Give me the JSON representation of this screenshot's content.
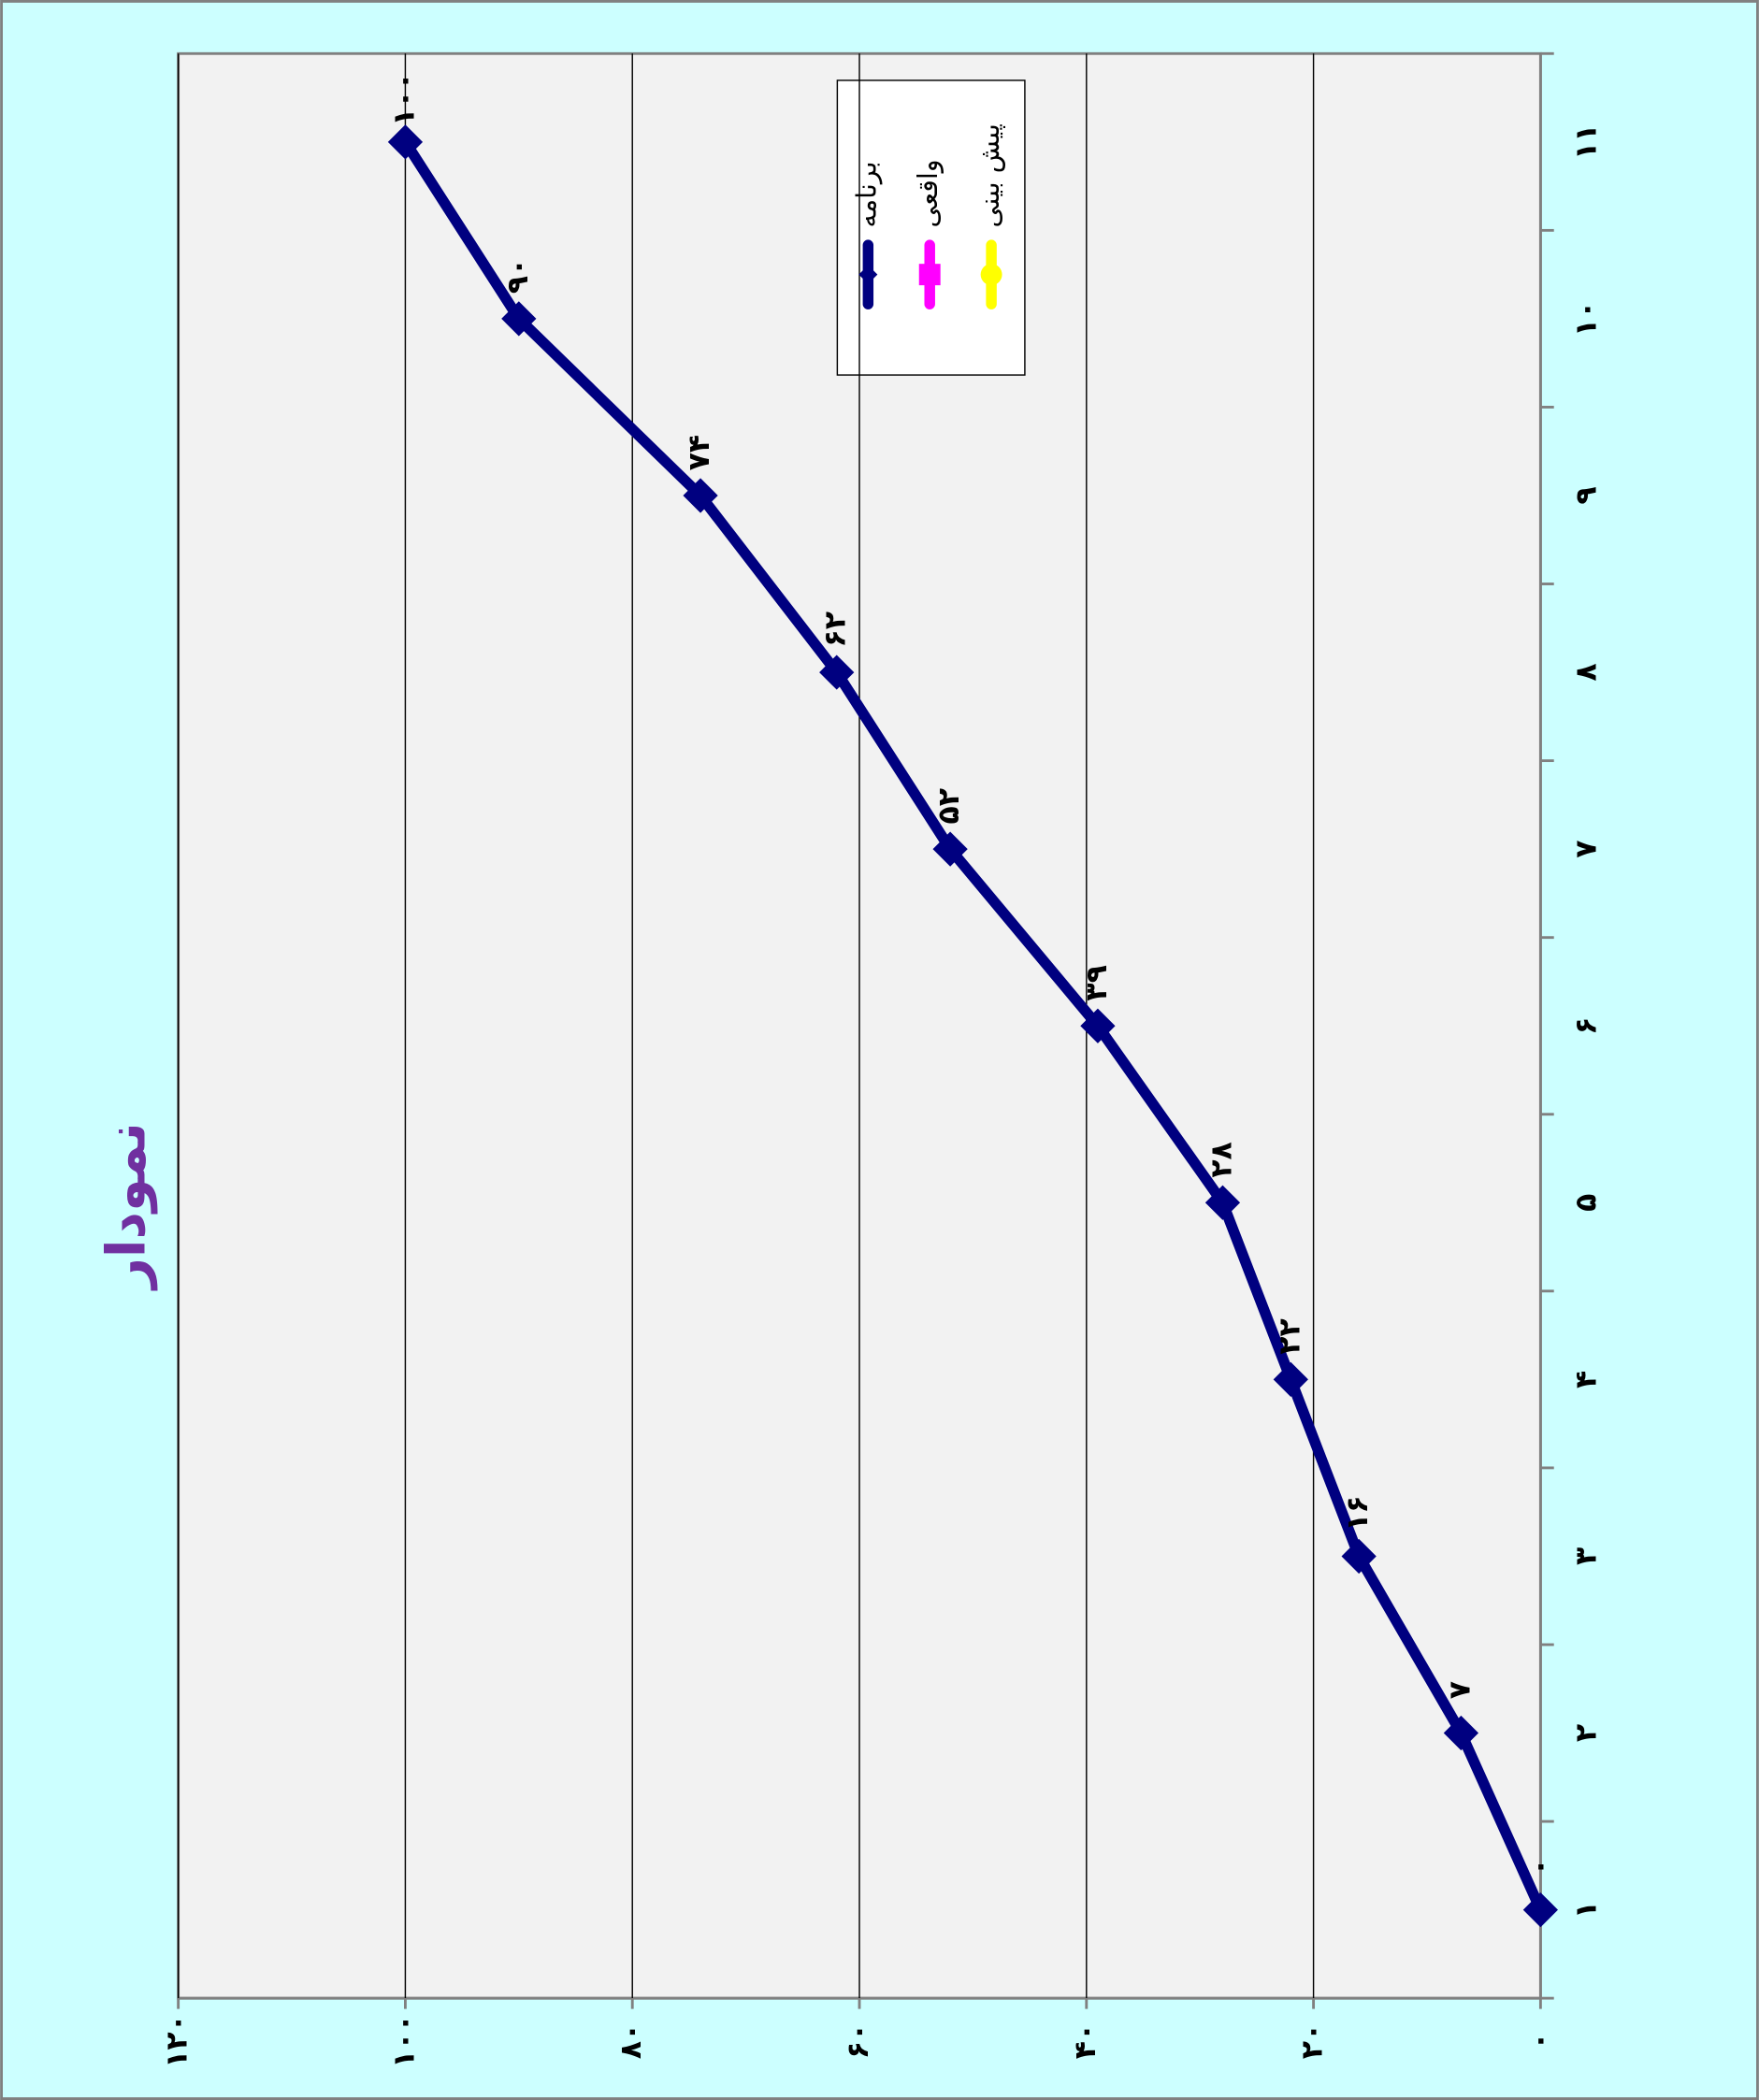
{
  "chart_data": {
    "type": "line",
    "title": "نمودار",
    "categories": [
      "۱",
      "۲",
      "۳",
      "۴",
      "۵",
      "۶",
      "۷",
      "۸",
      "۹",
      "۱۰",
      "۱۱"
    ],
    "series": [
      {
        "name": "برنامه",
        "color": "#000080",
        "values": [
          0,
          7,
          16,
          22,
          28,
          39,
          52,
          62,
          74,
          90,
          100
        ],
        "value_labels": [
          "۰",
          "۷",
          "۱۶",
          "۲۲",
          "۲۸",
          "۳۹",
          "۵۲",
          "۶۲",
          "۷۴",
          "۹۰",
          "۱۰۰"
        ]
      },
      {
        "name": "واقعی",
        "color": "#ff00ff",
        "values": [
          null,
          null,
          null,
          null,
          null,
          null,
          null,
          null,
          null,
          null,
          null
        ]
      },
      {
        "name": "پیش بینی",
        "color": "#ffff00",
        "values": [
          null,
          null,
          null,
          null,
          null,
          null,
          null,
          null,
          null,
          null,
          null
        ]
      }
    ],
    "ylim": [
      0,
      120
    ],
    "yticks": [
      {
        "value": 0,
        "label": "۰"
      },
      {
        "value": 20,
        "label": "۲۰"
      },
      {
        "value": 40,
        "label": "۴۰"
      },
      {
        "value": 60,
        "label": "۶۰"
      },
      {
        "value": 80,
        "label": "۸۰"
      },
      {
        "value": 100,
        "label": "۱۰۰"
      },
      {
        "value": 120,
        "label": "۱۲۰"
      }
    ],
    "grid": true
  }
}
